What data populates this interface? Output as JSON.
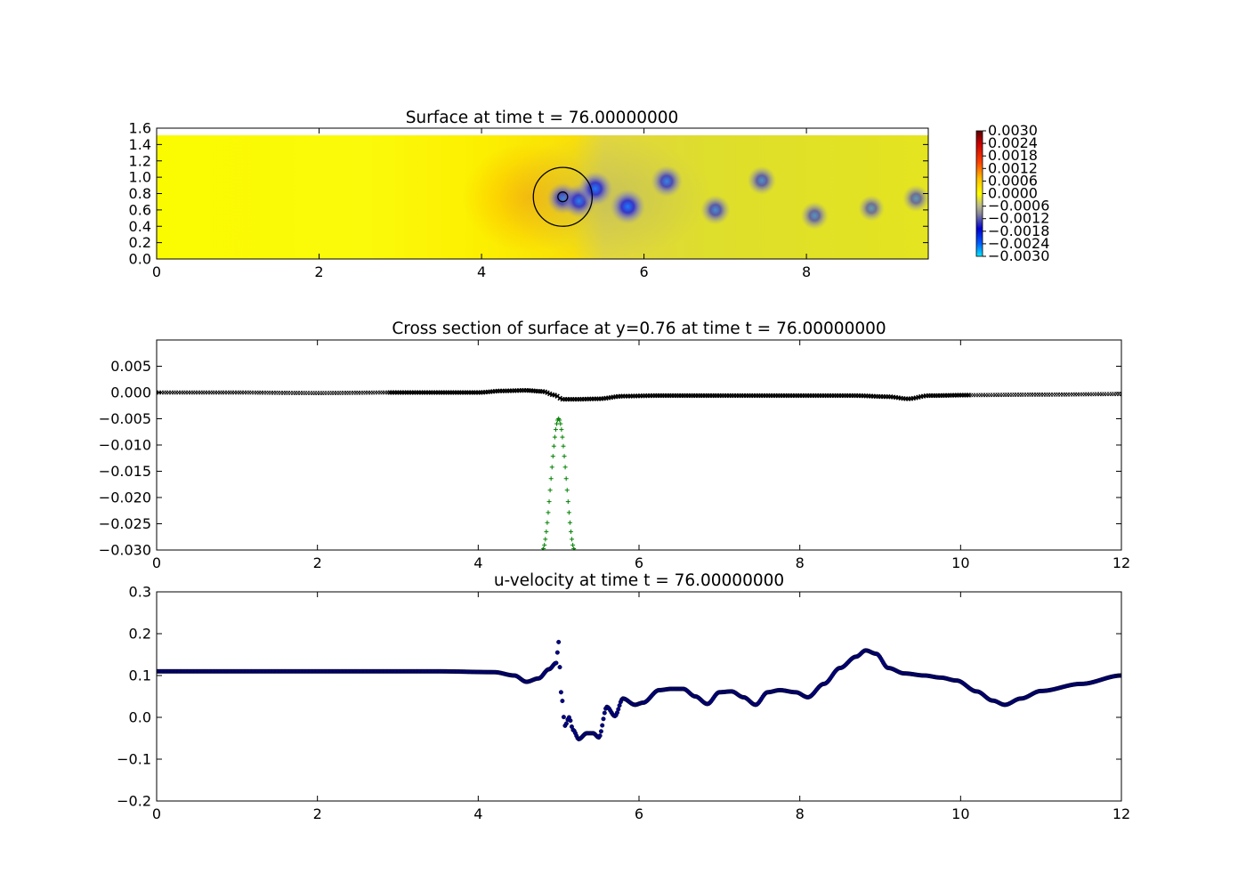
{
  "chart_data": [
    {
      "type": "heatmap",
      "title": "Surface at time t =    76.00000000",
      "xlim": [
        0,
        9.5
      ],
      "ylim": [
        0,
        1.6
      ],
      "xticks": [
        "0",
        "2",
        "4",
        "6",
        "8"
      ],
      "yticks": [
        "0.0",
        "0.2",
        "0.4",
        "0.6",
        "0.8",
        "1.0",
        "1.2",
        "1.4",
        "1.6"
      ],
      "colorbar": {
        "range": [
          -0.003,
          0.003
        ],
        "ticks": [
          "0.0030",
          "0.0024",
          "0.0018",
          "0.0012",
          "0.0006",
          "0.0000",
          "−0.0006",
          "−0.0012",
          "−0.0018",
          "−0.0024",
          "−0.0030"
        ]
      },
      "ship_circle": {
        "cx": 5.0,
        "cy": 0.76,
        "r": 0.36
      },
      "ship_center_marker": {
        "cx": 5.0,
        "cy": 0.76,
        "r": 0.06
      },
      "vortices": [
        {
          "x": 5.0,
          "y": 0.74,
          "value": -0.0022
        },
        {
          "x": 5.2,
          "y": 0.71,
          "value": -0.0026
        },
        {
          "x": 5.4,
          "y": 0.86,
          "value": -0.0028
        },
        {
          "x": 5.8,
          "y": 0.64,
          "value": -0.0029
        },
        {
          "x": 6.28,
          "y": 0.95,
          "value": -0.0022
        },
        {
          "x": 6.88,
          "y": 0.6,
          "value": -0.0018
        },
        {
          "x": 7.45,
          "y": 0.96,
          "value": -0.0016
        },
        {
          "x": 8.1,
          "y": 0.53,
          "value": -0.0014
        },
        {
          "x": 8.8,
          "y": 0.62,
          "value": -0.0011
        },
        {
          "x": 9.35,
          "y": 0.74,
          "value": -0.0012
        }
      ]
    },
    {
      "type": "scatter",
      "title": "Cross section of surface at y=0.76 at time t =    76.00000000",
      "xlim": [
        0,
        12
      ],
      "ylim": [
        -0.03,
        0.01
      ],
      "xticks": [
        "0",
        "2",
        "4",
        "6",
        "8",
        "10",
        "12"
      ],
      "yticks": [
        "0.005",
        "0.000",
        "−0.005",
        "−0.010",
        "−0.015",
        "−0.020",
        "−0.025",
        "−0.030"
      ],
      "series": [
        {
          "color": "#000000",
          "x": [
            0,
            1,
            2,
            2.9,
            3.5,
            4.0,
            4.3,
            4.6,
            4.8,
            4.95,
            5.05,
            5.2,
            5.5,
            5.8,
            6.2,
            7.0,
            8.0,
            8.7,
            9.1,
            9.35,
            9.6,
            10.1,
            11,
            12
          ],
          "y": [
            0.0,
            0.0,
            -0.0001,
            0.0,
            0.0,
            0.0,
            0.0003,
            0.0004,
            0.0002,
            -0.0005,
            -0.0013,
            -0.0013,
            -0.0012,
            -0.0007,
            -0.0006,
            -0.0006,
            -0.0006,
            -0.0006,
            -0.0008,
            -0.0012,
            -0.0006,
            -0.0005,
            -0.0004,
            -0.0003
          ]
        },
        {
          "color": "#008000",
          "x": [
            4.8,
            5.0,
            5.2
          ],
          "y": [
            -0.03,
            -0.005,
            -0.03
          ]
        }
      ]
    },
    {
      "type": "scatter",
      "title": "u-velocity at time t =    76.00000000",
      "xlim": [
        0,
        12
      ],
      "ylim": [
        -0.2,
        0.3
      ],
      "xticks": [
        "0",
        "2",
        "4",
        "6",
        "8",
        "10",
        "12"
      ],
      "yticks": [
        "0.3",
        "0.2",
        "0.1",
        "0.0",
        "−0.1",
        "−0.2"
      ],
      "series": [
        {
          "color": "#00008b",
          "x": [
            0,
            2,
            3.5,
            4.2,
            4.45,
            4.6,
            4.75,
            4.88,
            4.97,
            5.0,
            5.03,
            5.08,
            5.13,
            5.18,
            5.25,
            5.35,
            5.43,
            5.5,
            5.6,
            5.7,
            5.8,
            5.95,
            6.05,
            6.25,
            6.4,
            6.55,
            6.7,
            6.85,
            7.0,
            7.15,
            7.3,
            7.45,
            7.6,
            7.75,
            7.95,
            8.1,
            8.3,
            8.5,
            8.7,
            8.82,
            8.95,
            9.1,
            9.3,
            9.55,
            9.75,
            9.95,
            10.2,
            10.4,
            10.55,
            10.75,
            11.0,
            11.5,
            12.0
          ],
          "y": [
            0.11,
            0.11,
            0.11,
            0.108,
            0.1,
            0.085,
            0.093,
            0.115,
            0.13,
            0.18,
            0.06,
            -0.02,
            0.0,
            -0.03,
            -0.052,
            -0.038,
            -0.038,
            -0.048,
            0.025,
            0.003,
            0.045,
            0.03,
            0.035,
            0.065,
            0.068,
            0.068,
            0.05,
            0.032,
            0.06,
            0.062,
            0.048,
            0.03,
            0.06,
            0.065,
            0.06,
            0.048,
            0.08,
            0.118,
            0.145,
            0.16,
            0.152,
            0.118,
            0.105,
            0.1,
            0.095,
            0.088,
            0.062,
            0.04,
            0.03,
            0.045,
            0.063,
            0.08,
            0.1
          ]
        }
      ]
    }
  ]
}
